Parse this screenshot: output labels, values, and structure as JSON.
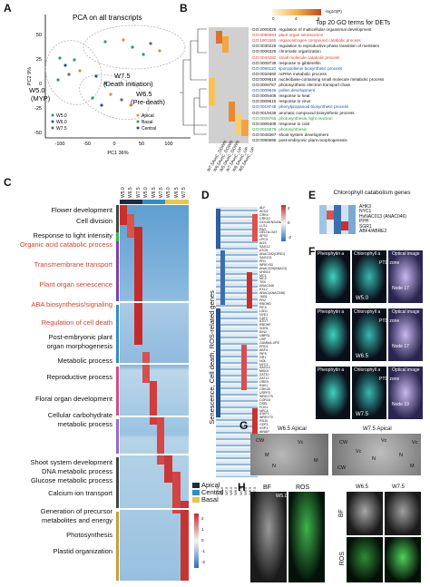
{
  "panels": {
    "A": {
      "label": "A",
      "title": "PCA on all transcripts",
      "xlabel": "PC1 36%",
      "ylabel": "PC2 9%",
      "xticks": [
        "-100",
        "-50",
        "0",
        "50",
        "100"
      ],
      "yticks": [
        "50",
        "25",
        "0",
        "-25",
        "-50"
      ],
      "groups": [
        {
          "name": "W7.5",
          "sub": "(Death initiation)"
        },
        {
          "name": "W5.0",
          "sub": "(MYP)"
        },
        {
          "name": "W6.5",
          "sub": "(Pre-death)"
        }
      ],
      "legend_stage": [
        "W5.0",
        "W6.0",
        "W7.5"
      ],
      "legend_region": [
        "Apical",
        "Basal",
        "Central"
      ]
    },
    "B": {
      "label": "B",
      "title": "Top 20 GO terms for DETs",
      "scale_label": "-log10(P)",
      "scale_ticks": [
        "0",
        "2",
        "4",
        "6",
        "8"
      ],
      "columns": [
        "W7.5AvsC_DOWN",
        "W6.5AvsC_DOWN",
        "W5.0AvsC_DOWN",
        "W7.5AvsC_UP",
        "W6.5AvsC_UP",
        "W5.5AvsC_UP"
      ],
      "terms": [
        {
          "id": "GO:2000026",
          "name": "regulation of multicellular organismal development",
          "color": "#111"
        },
        {
          "id": "GO:0090693",
          "name": "plant organ senescence",
          "color": "#d6402a"
        },
        {
          "id": "GO:1901565",
          "name": "organonitrogen compound catabolic process",
          "color": "#d6402a"
        },
        {
          "id": "GO:0030229",
          "name": "regulation to reproductive phase transition of meristem",
          "color": "#111"
        },
        {
          "id": "GO:0006325",
          "name": "chromatin organization",
          "color": "#111"
        },
        {
          "id": "GO:0044282",
          "name": "small molecule catabolic process",
          "color": "#d6402a"
        },
        {
          "id": "GO:0009739",
          "name": "response to gibberellin",
          "color": "#111"
        },
        {
          "id": "GO:0080110",
          "name": "sporopollenin biosynthetic process",
          "color": "#1f4fb5"
        },
        {
          "id": "GO:0034660",
          "name": "ncRNA metabolic process",
          "color": "#111"
        },
        {
          "id": "GO:0009616",
          "name": "nucleobase-containing small molecule metabolic process",
          "color": "#111"
        },
        {
          "id": "GO:0009767",
          "name": "photosynthetic electron transport chain",
          "color": "#111"
        },
        {
          "id": "GO:0009846",
          "name": "pollen development",
          "color": "#1f4fb5"
        },
        {
          "id": "GO:0009408",
          "name": "response to heat",
          "color": "#111"
        },
        {
          "id": "GO:0009615",
          "name": "response to virus",
          "color": "#111"
        },
        {
          "id": "GO:0019748",
          "name": "phenylpropanoid biosynthetic process",
          "color": "#1f4fb5"
        },
        {
          "id": "GO:0019438",
          "name": "aromatic compound biosynthetic process",
          "color": "#111"
        },
        {
          "id": "GO:0009765",
          "name": "photosynthesis, light reaction",
          "color": "#2e9a3a"
        },
        {
          "id": "GO:0009409",
          "name": "response to cold",
          "color": "#111"
        },
        {
          "id": "GO:0015979",
          "name": "photosynthesis",
          "color": "#2e9a3a"
        },
        {
          "id": "GO:0048367",
          "name": "shoot system development",
          "color": "#111"
        },
        {
          "id": "GO:0090696",
          "name": "post-embryonic plant morphogenesis",
          "color": "#111"
        }
      ]
    },
    "C": {
      "label": "C",
      "columns": [
        "W5.0",
        "W6.5",
        "W7.5",
        "W5.0",
        "W6.5",
        "W7.5",
        "W5.0",
        "W6.5",
        "W7.5"
      ],
      "categories": [
        {
          "name": "Flower development",
          "color": "#111"
        },
        {
          "name": "Cell division",
          "color": "#111"
        },
        {
          "name": "Response to light intensity",
          "color": "#111"
        },
        {
          "name": "Organic acid catabolic process",
          "color": "#d6402a"
        },
        {
          "name": "Transmembrane transport",
          "color": "#d6402a"
        },
        {
          "name": "Plant organ senescence",
          "color": "#d6402a"
        },
        {
          "name": "ABA biosynthesis/signaling",
          "color": "#d6402a"
        },
        {
          "name": "Regulation of cell death",
          "color": "#d6402a"
        },
        {
          "name": "Post-embryonic plant",
          "color": "#111"
        },
        {
          "name": "organ morphogenesis",
          "color": "#111"
        },
        {
          "name": "Metabolic process",
          "color": "#111"
        },
        {
          "name": "Reproductive process",
          "color": "#111"
        },
        {
          "name": "Floral organ development",
          "color": "#111"
        },
        {
          "name": "Cellular carbohydrate",
          "color": "#111"
        },
        {
          "name": "metabolic process",
          "color": "#111"
        },
        {
          "name": "Shoot system development",
          "color": "#111"
        },
        {
          "name": "DNA metabolic process",
          "color": "#111"
        },
        {
          "name": "Glucose metabolic process",
          "color": "#111"
        },
        {
          "name": "Calcium ion transport",
          "color": "#111"
        },
        {
          "name": "Generation of precursor",
          "color": "#111"
        },
        {
          "name": "metabolites and energy",
          "color": "#111"
        },
        {
          "name": "Photosynthesis",
          "color": "#111"
        },
        {
          "name": "Plastid organization",
          "color": "#111"
        }
      ],
      "region_legend": [
        {
          "name": "Apical",
          "color": "#1f2a44"
        },
        {
          "name": "Central",
          "color": "#2f8fc4"
        },
        {
          "name": "Basal",
          "color": "#e8c64a"
        }
      ],
      "scale_ticks": [
        "2",
        "1",
        "0",
        "-1",
        "-2"
      ]
    },
    "D": {
      "label": "D",
      "ylabel": "Senescence, Cell death, ROS-related genes",
      "scale_ticks": [
        "2",
        "1",
        "0",
        "-1",
        "-2"
      ],
      "genes": [
        "ALF",
        "ACD2",
        "CRK4",
        "CRK10",
        "GOLDEN2/ANAC",
        "LLS1",
        "PAO",
        "DELTA-OAT",
        "APX2",
        "LPC3",
        "AGS",
        "SAG12",
        "ATG5",
        "ANAC092(ORE1)",
        "SAG101",
        "PR1",
        "WRKY53",
        "ANAC029(ANAC2)",
        "MYB10",
        "MC1",
        "MC2",
        "TRX",
        "ANAC046",
        "EXL2",
        "ANAC(ANAC046)",
        "JUB1",
        "PR2",
        "RBOHD",
        "PIF4",
        "LSD1",
        "NYE1",
        "CAT2",
        "ATG7",
        "RBOHF",
        "SGR1",
        "EIN2",
        "UBPS1",
        "USP",
        "GAMMA-VPE",
        "ERD1",
        "ABF4",
        "PIF5",
        "GR1",
        "NOL",
        "NYC1",
        "SAG13",
        "MKK9",
        "ZAT10",
        "ZAT12",
        "ORE9",
        "RAV1",
        "CRK28",
        "USPF5",
        "WRKY75",
        "COR15",
        "DSEL",
        "FOX1",
        "NPC4",
        "ATAF1",
        "WRKY70",
        "RD20",
        "CEP1",
        "VSP1",
        "AtNAP",
        "WRKY22",
        "BFN1",
        "ACS6",
        "SAG113",
        "NAC4",
        "EDS1",
        "UGT73B2",
        "ANAC019",
        "CP1",
        "GLK1",
        "SGR2",
        "WRKY46"
      ],
      "columns": [
        "W5.0",
        "W6.5",
        "W7.5",
        "W5.0",
        "W6.5",
        "W7.5",
        "W5.0",
        "W6.5",
        "W7.5"
      ]
    },
    "E": {
      "label": "E",
      "title": "Chlorophyll catabolism genes",
      "genes": [
        "AHK3",
        "NYC1",
        "HvNAC013 (ANAC046)",
        "PPH",
        "SGR1",
        "ABF4/ABRE2"
      ]
    },
    "F": {
      "label": "F",
      "rows": [
        {
          "stage": "W5.0",
          "node": "Node 17"
        },
        {
          "stage": "W6.5",
          "node": "Node 17"
        },
        {
          "stage": "W7.5",
          "node": "Node 19"
        }
      ],
      "col_pheo": "Pheophytin a",
      "col_chl": "Chlorophyll a",
      "col_opt": "Optical image",
      "ptd": "PTD zone"
    },
    "G": {
      "label": "G",
      "left_title": "W6.5 Apical",
      "right_title": "W7.5 Apical",
      "marks": [
        "CW",
        "M",
        "Vc",
        "N",
        "M",
        "CW",
        "Vc",
        "Vc",
        "N",
        "CW",
        "N",
        "M",
        "Vc"
      ]
    },
    "H": {
      "label": "H",
      "bf": "BF",
      "ros": "ROS",
      "stage_left": "W5.0",
      "stage_mid": "W6.5",
      "stage_right": "W7.5",
      "row_bf": "BF",
      "row_ros": "ROS"
    }
  }
}
